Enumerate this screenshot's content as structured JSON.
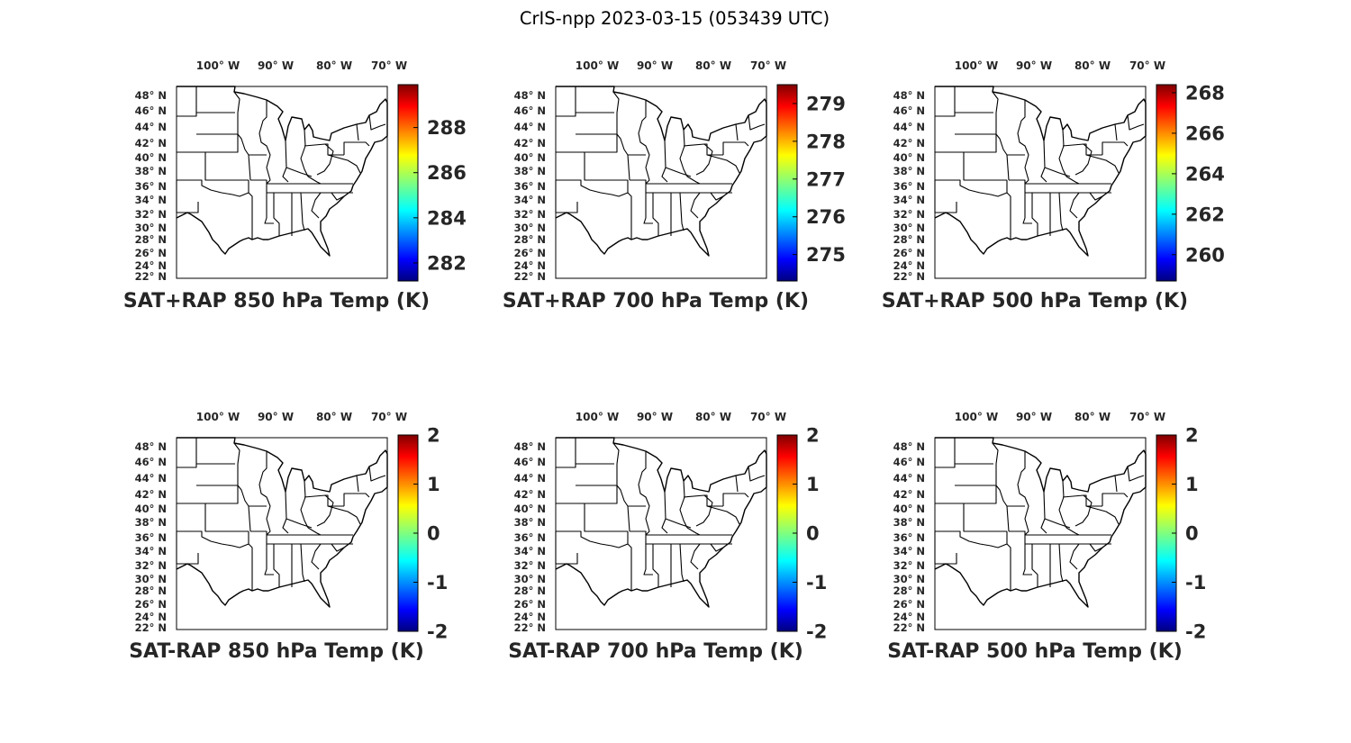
{
  "figure": {
    "title": "CrIS-npp 2023-03-15 (053439 UTC)"
  },
  "map_ticks": {
    "longitude": [
      "100° W",
      "90° W",
      "80° W",
      "70° W"
    ],
    "latitude": [
      "48° N",
      "46° N",
      "44° N",
      "42° N",
      "40° N",
      "38° N",
      "36° N",
      "34° N",
      "32° N",
      "30° N",
      "28° N",
      "26° N",
      "24° N",
      "22° N"
    ]
  },
  "extent": {
    "lon": [
      -107,
      -70
    ],
    "lat": [
      22,
      50
    ]
  },
  "colormap": "jet",
  "panels": [
    {
      "title": "SAT+RAP 850 hPa Temp (K)",
      "colorbar": {
        "ticks": [
          "282",
          "284",
          "286",
          "288"
        ],
        "range": [
          281.2,
          289.9
        ]
      }
    },
    {
      "title": "SAT+RAP 700 hPa Temp (K)",
      "colorbar": {
        "ticks": [
          "275",
          "276",
          "277",
          "278",
          "279"
        ],
        "range": [
          274.3,
          279.5
        ]
      }
    },
    {
      "title": "SAT+RAP 500 hPa Temp (K)",
      "colorbar": {
        "ticks": [
          "260",
          "262",
          "264",
          "266",
          "268"
        ],
        "range": [
          258.7,
          268.4
        ]
      }
    },
    {
      "title": "SAT-RAP 850 hPa Temp (K)",
      "colorbar": {
        "ticks": [
          "-2",
          "-1",
          "0",
          "1",
          "2"
        ],
        "range": [
          -2,
          2
        ]
      }
    },
    {
      "title": "SAT-RAP 700 hPa Temp (K)",
      "colorbar": {
        "ticks": [
          "-2",
          "-1",
          "0",
          "1",
          "2"
        ],
        "range": [
          -2,
          2
        ]
      }
    },
    {
      "title": "SAT-RAP 500 hPa Temp (K)",
      "colorbar": {
        "ticks": [
          "-2",
          "-1",
          "0",
          "1",
          "2"
        ],
        "range": [
          -2,
          2
        ]
      }
    }
  ]
}
